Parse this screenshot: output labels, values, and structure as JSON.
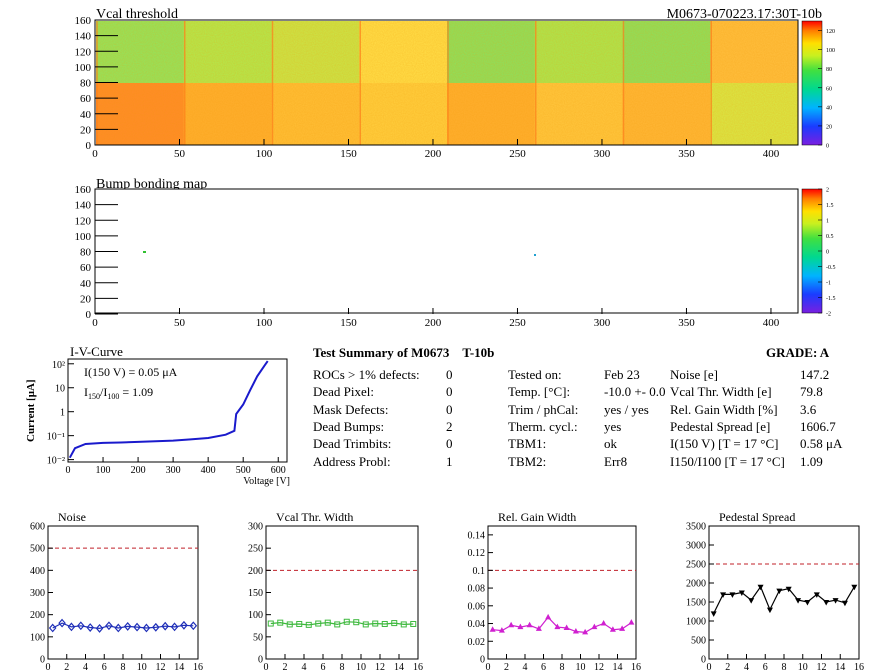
{
  "maps": {
    "vcal": {
      "title": "Vcal threshold",
      "id_label": "M0673-070223.17:30T-10b",
      "x_ticks": [
        "0",
        "50",
        "100",
        "150",
        "200",
        "250",
        "300",
        "350",
        "400"
      ],
      "y_ticks": [
        "0",
        "20",
        "40",
        "60",
        "80",
        "100",
        "120",
        "140",
        "160"
      ],
      "palette_ticks": [
        "0",
        "20",
        "40",
        "60",
        "80",
        "100",
        "120"
      ]
    },
    "bump": {
      "title": "Bump bonding map",
      "x_ticks": [
        "0",
        "50",
        "100",
        "150",
        "200",
        "250",
        "300",
        "350",
        "400"
      ],
      "y_ticks": [
        "0",
        "20",
        "40",
        "60",
        "80",
        "100",
        "120",
        "140",
        "160"
      ],
      "palette_ticks": [
        "-2",
        "-1.5",
        "-1",
        "-0.5",
        "0",
        "0.5",
        "1",
        "1.5",
        "2"
      ]
    }
  },
  "iv": {
    "title": "I-V-Curve",
    "ylabel": "Current [μA]",
    "xlabel": "Voltage [V]",
    "x_ticks": [
      "0",
      "100",
      "200",
      "300",
      "400",
      "500",
      "600"
    ],
    "y_ticks": [
      "10⁻²",
      "10⁻¹",
      "1",
      "10",
      "10²"
    ],
    "annot1": "I(150 V) = 0.05 μA",
    "annot2_a": "I",
    "annot2_sub1": "150",
    "annot2_mid": "/I",
    "annot2_sub2": "100",
    "annot2_b": " =  1.09",
    "points": [
      [
        5,
        0.012
      ],
      [
        20,
        0.03
      ],
      [
        50,
        0.045
      ],
      [
        100,
        0.05
      ],
      [
        150,
        0.052
      ],
      [
        200,
        0.055
      ],
      [
        250,
        0.058
      ],
      [
        300,
        0.062
      ],
      [
        350,
        0.07
      ],
      [
        400,
        0.08
      ],
      [
        450,
        0.11
      ],
      [
        475,
        0.16
      ],
      [
        480,
        0.8
      ],
      [
        500,
        2
      ],
      [
        520,
        8
      ],
      [
        540,
        30
      ],
      [
        560,
        80
      ],
      [
        570,
        130
      ]
    ]
  },
  "summary": {
    "header": "Test Summary of M0673",
    "header_b": "T-10b",
    "grade": "GRADE:  A",
    "left": [
      {
        "label": "ROCs > 1% defects:",
        "value": "0"
      },
      {
        "label": "Dead Pixel:",
        "value": "0"
      },
      {
        "label": "Mask Defects:",
        "value": "0"
      },
      {
        "label": "Dead Bumps:",
        "value": "2"
      },
      {
        "label": "Dead Trimbits:",
        "value": "0"
      },
      {
        "label": "Address Probl:",
        "value": "1"
      }
    ],
    "mid": [
      {
        "label": "Tested on:",
        "value": "Feb 23"
      },
      {
        "label": "Temp. [°C]:",
        "value": "-10.0 +- 0.0"
      },
      {
        "label": "Trim / phCal:",
        "value": "yes / yes"
      },
      {
        "label": "Therm. cycl.:",
        "value": "yes"
      },
      {
        "label": "TBM1:",
        "value": "ok"
      },
      {
        "label": "TBM2:",
        "value": "Err8"
      }
    ],
    "right": [
      {
        "label": "Noise [e]",
        "value": "147.2"
      },
      {
        "label": "Vcal Thr. Width [e]",
        "value": "79.8"
      },
      {
        "label": "Rel. Gain Width [%]",
        "value": "3.6"
      },
      {
        "label": "Pedestal Spread [e]",
        "value": "1606.7"
      },
      {
        "label": "I(150 V) [T = 17 °C]",
        "value": "0.58 μA"
      },
      {
        "label": "I150/I100  [T = 17 °C]",
        "value": "1.09"
      }
    ]
  },
  "chart_data": [
    {
      "type": "line",
      "title": "Noise",
      "x": [
        0,
        1,
        2,
        3,
        4,
        5,
        6,
        7,
        8,
        9,
        10,
        11,
        12,
        13,
        14,
        15
      ],
      "values": [
        140,
        162,
        145,
        150,
        142,
        138,
        150,
        140,
        147,
        144,
        140,
        143,
        148,
        145,
        152,
        150
      ],
      "ylim": [
        0,
        600
      ],
      "yticks": [
        "0",
        "100",
        "200",
        "300",
        "400",
        "500",
        "600"
      ],
      "xlim": [
        0,
        16
      ],
      "limit": 500,
      "color": "#1f2fb8",
      "marker": "diamond"
    },
    {
      "type": "line",
      "title": "Vcal Thr. Width",
      "x": [
        0,
        1,
        2,
        3,
        4,
        5,
        6,
        7,
        8,
        9,
        10,
        11,
        12,
        13,
        14,
        15
      ],
      "values": [
        80,
        82,
        78,
        79,
        77,
        80,
        82,
        78,
        84,
        83,
        78,
        80,
        79,
        81,
        78,
        79
      ],
      "ylim": [
        0,
        300
      ],
      "yticks": [
        "0",
        "50",
        "100",
        "150",
        "200",
        "250",
        "300"
      ],
      "xlim": [
        0,
        16
      ],
      "limit": 200,
      "color": "#3cb83c",
      "marker": "square"
    },
    {
      "type": "line",
      "title": "Rel. Gain Width",
      "x": [
        0,
        1,
        2,
        3,
        4,
        5,
        6,
        7,
        8,
        9,
        10,
        11,
        12,
        13,
        14,
        15
      ],
      "values": [
        0.033,
        0.032,
        0.038,
        0.036,
        0.038,
        0.034,
        0.047,
        0.036,
        0.035,
        0.031,
        0.03,
        0.036,
        0.04,
        0.033,
        0.034,
        0.041
      ],
      "ylim": [
        0,
        0.15
      ],
      "yticks": [
        "0",
        "0.02",
        "0.04",
        "0.06",
        "0.08",
        "0.1",
        "0.12",
        "0.14"
      ],
      "xlim": [
        0,
        16
      ],
      "limit": 0.1,
      "color": "#d020d0",
      "marker": "triangle"
    },
    {
      "type": "line",
      "title": "Pedestal Spread",
      "x": [
        0,
        1,
        2,
        3,
        4,
        5,
        6,
        7,
        8,
        9,
        10,
        11,
        12,
        13,
        14,
        15
      ],
      "values": [
        1200,
        1700,
        1700,
        1750,
        1550,
        1900,
        1300,
        1800,
        1850,
        1550,
        1500,
        1700,
        1500,
        1550,
        1480,
        1900
      ],
      "ylim": [
        0,
        3500
      ],
      "yticks": [
        "0",
        "500",
        "1000",
        "1500",
        "2000",
        "2500",
        "3000",
        "3500"
      ],
      "xlim": [
        0,
        16
      ],
      "limit": 2500,
      "color": "#000000",
      "marker": "triangle-down"
    }
  ],
  "small_x_ticks": [
    "0",
    "2",
    "4",
    "6",
    "8",
    "10",
    "12",
    "14",
    "16"
  ]
}
